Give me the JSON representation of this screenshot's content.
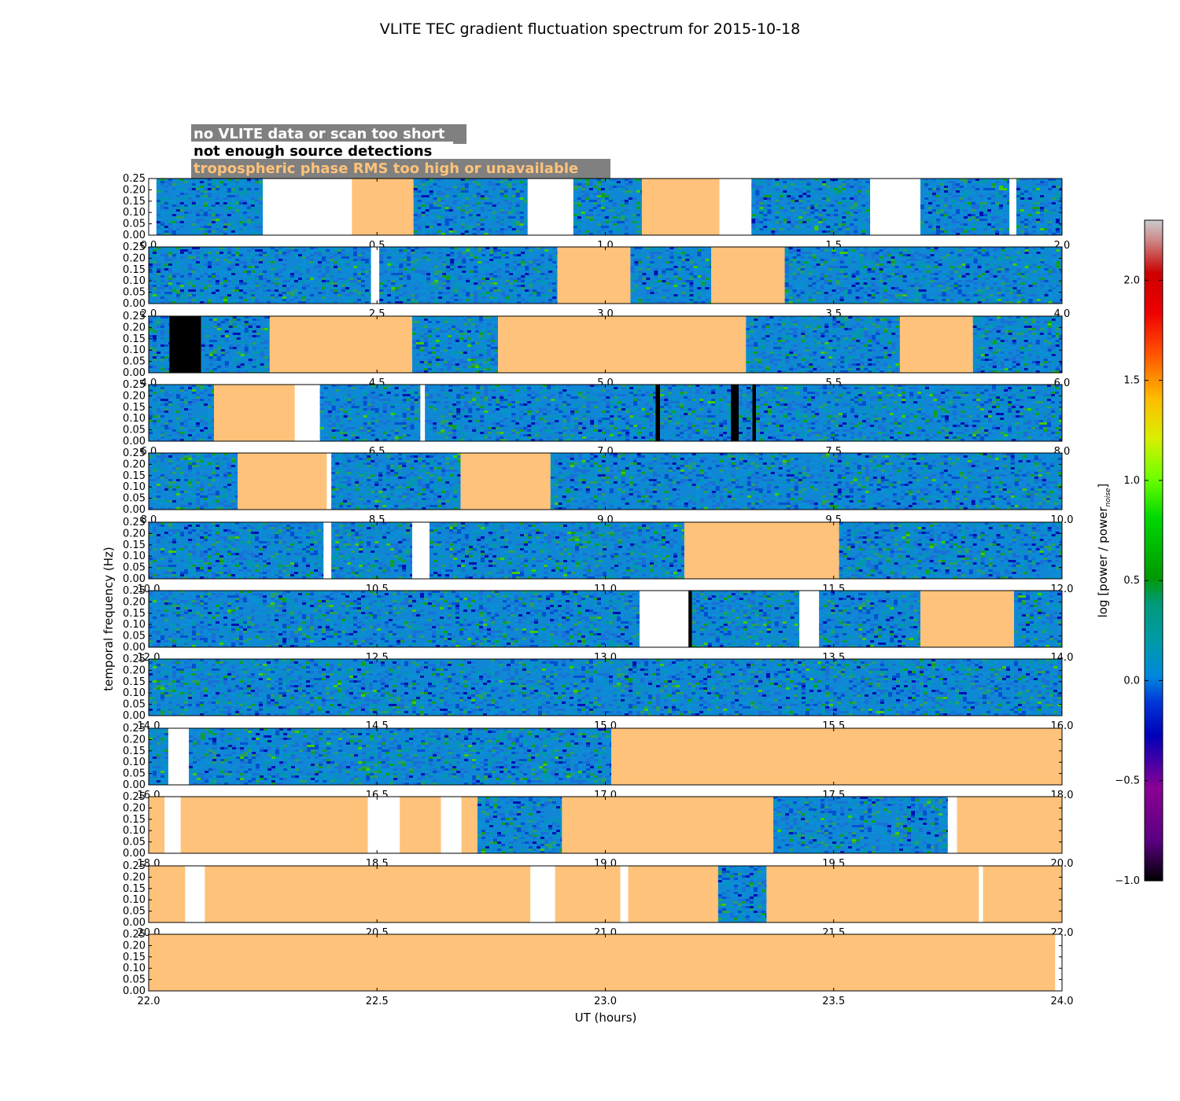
{
  "chart_data": {
    "type": "heatmap",
    "title": "VLITE TEC gradient fluctuation spectrum for 2015-10-18",
    "xlabel": "UT (hours)",
    "ylabel": "temporal frequency (Hz)",
    "ylim": [
      0.0,
      0.25
    ],
    "y_ticks": [
      "0.00",
      "0.05",
      "0.10",
      "0.15",
      "0.20",
      "0.25"
    ],
    "colorbar": {
      "label": "log [power / power",
      "label_sub": "noise",
      "label_end": "]",
      "range": [
        -1.0,
        2.3
      ],
      "ticks": [
        "−1.0",
        "−0.5",
        "0.0",
        "0.5",
        "1.0",
        "1.5",
        "2.0"
      ],
      "tick_values": [
        -1.0,
        -0.5,
        0.0,
        0.5,
        1.0,
        1.5,
        2.0
      ]
    },
    "legend": [
      {
        "label": "no VLITE data or scan too short",
        "color": "#ffffff"
      },
      {
        "label": "not enough source detections",
        "color": "#000000"
      },
      {
        "label": "tropospheric phase RMS too high or unavailable",
        "color": "#ffc27a"
      }
    ],
    "panel_colors": {
      "none": "#ffffff",
      "black": "#000000",
      "trop": "#ffc27a"
    },
    "panels": [
      {
        "xlim": [
          0,
          2
        ],
        "x_ticks": [
          "0.0",
          "0.5",
          "1.0",
          "1.5",
          "2.0"
        ],
        "segments": [
          [
            "none",
            0,
            0.017
          ],
          [
            "data",
            0.017,
            0.25
          ],
          [
            "none",
            0.25,
            0.445
          ],
          [
            "trop",
            0.445,
            0.58
          ],
          [
            "data",
            0.58,
            0.83
          ],
          [
            "none",
            0.83,
            0.93
          ],
          [
            "data",
            0.93,
            1.08
          ],
          [
            "trop",
            1.08,
            1.25
          ],
          [
            "none",
            1.25,
            1.32
          ],
          [
            "data",
            1.32,
            1.58
          ],
          [
            "none",
            1.58,
            1.69
          ],
          [
            "data",
            1.69,
            1.885
          ],
          [
            "none",
            1.885,
            1.9
          ],
          [
            "data",
            1.9,
            2.0
          ]
        ]
      },
      {
        "xlim": [
          2,
          4
        ],
        "x_ticks": [
          "2.0",
          "2.5",
          "3.0",
          "3.5",
          "4.0"
        ],
        "segments": [
          [
            "data",
            2.0,
            2.487
          ],
          [
            "none",
            2.487,
            2.505
          ],
          [
            "data",
            2.505,
            2.895
          ],
          [
            "trop",
            2.895,
            3.055
          ],
          [
            "data",
            3.055,
            3.232
          ],
          [
            "trop",
            3.232,
            3.393
          ],
          [
            "data",
            3.393,
            4.0
          ]
        ]
      },
      {
        "xlim": [
          4,
          6
        ],
        "x_ticks": [
          "4.0",
          "4.5",
          "5.0",
          "5.5",
          "6.0"
        ],
        "segments": [
          [
            "data",
            4.0,
            4.045
          ],
          [
            "black",
            4.045,
            4.115
          ],
          [
            "data",
            4.115,
            4.265
          ],
          [
            "trop",
            4.265,
            4.577
          ],
          [
            "data",
            4.577,
            4.765
          ],
          [
            "trop",
            4.765,
            5.308
          ],
          [
            "data",
            5.308,
            5.645
          ],
          [
            "trop",
            5.645,
            5.805
          ],
          [
            "data",
            5.805,
            6.0
          ]
        ]
      },
      {
        "xlim": [
          6,
          8
        ],
        "x_ticks": [
          "6.0",
          "6.5",
          "7.0",
          "7.5",
          "8.0"
        ],
        "segments": [
          [
            "data",
            6.0,
            6.143
          ],
          [
            "trop",
            6.143,
            6.32
          ],
          [
            "none",
            6.32,
            6.375
          ],
          [
            "data",
            6.375,
            6.595
          ],
          [
            "none",
            6.595,
            6.605
          ],
          [
            "data",
            6.605,
            7.11
          ],
          [
            "black",
            7.11,
            7.12
          ],
          [
            "data",
            7.12,
            7.275
          ],
          [
            "black",
            7.275,
            7.292
          ],
          [
            "data",
            7.292,
            7.322
          ],
          [
            "black",
            7.322,
            7.33
          ],
          [
            "data",
            7.33,
            8.0
          ]
        ]
      },
      {
        "xlim": [
          8,
          10
        ],
        "x_ticks": [
          "8.0",
          "8.5",
          "9.0",
          "9.5",
          "10.0"
        ],
        "segments": [
          [
            "data",
            8.0,
            8.195
          ],
          [
            "trop",
            8.195,
            8.39
          ],
          [
            "none",
            8.39,
            8.4
          ],
          [
            "data",
            8.4,
            8.683
          ],
          [
            "trop",
            8.683,
            8.88
          ],
          [
            "data",
            8.88,
            10.0
          ]
        ]
      },
      {
        "xlim": [
          10,
          12
        ],
        "x_ticks": [
          "10.0",
          "10.5",
          "11.0",
          "11.5",
          "12.0"
        ],
        "segments": [
          [
            "data",
            10.0,
            10.383
          ],
          [
            "none",
            10.383,
            10.4
          ],
          [
            "data",
            10.4,
            10.577
          ],
          [
            "none",
            10.577,
            10.615
          ],
          [
            "data",
            10.615,
            11.173
          ],
          [
            "trop",
            11.173,
            11.512
          ],
          [
            "data",
            11.512,
            12.0
          ]
        ]
      },
      {
        "xlim": [
          12,
          14
        ],
        "x_ticks": [
          "12.0",
          "12.5",
          "13.0",
          "13.5",
          "14.0"
        ],
        "segments": [
          [
            "data",
            12.0,
            13.075
          ],
          [
            "none",
            13.075,
            13.182
          ],
          [
            "black",
            13.182,
            13.19
          ],
          [
            "data",
            13.19,
            13.425
          ],
          [
            "none",
            13.425,
            13.468
          ],
          [
            "data",
            13.468,
            13.69
          ],
          [
            "trop",
            13.69,
            13.895
          ],
          [
            "data",
            13.895,
            14.0
          ]
        ]
      },
      {
        "xlim": [
          14,
          16
        ],
        "x_ticks": [
          "14.0",
          "14.5",
          "15.0",
          "15.5",
          "16.0"
        ],
        "segments": [
          [
            "data",
            14.0,
            16.0
          ]
        ]
      },
      {
        "xlim": [
          16,
          18
        ],
        "x_ticks": [
          "16.0",
          "16.5",
          "17.0",
          "17.5",
          "18.0"
        ],
        "segments": [
          [
            "data",
            16.0,
            16.043
          ],
          [
            "none",
            16.043,
            16.088
          ],
          [
            "data",
            16.088,
            17.013
          ],
          [
            "trop",
            17.013,
            18.0
          ]
        ]
      },
      {
        "xlim": [
          18,
          20
        ],
        "x_ticks": [
          "18.0",
          "18.5",
          "19.0",
          "19.5",
          "20.0"
        ],
        "segments": [
          [
            "trop",
            18.0,
            18.035
          ],
          [
            "none",
            18.035,
            18.07
          ],
          [
            "trop",
            18.07,
            18.48
          ],
          [
            "none",
            18.48,
            18.55
          ],
          [
            "trop",
            18.55,
            18.64
          ],
          [
            "none",
            18.64,
            18.685
          ],
          [
            "trop",
            18.685,
            18.72
          ],
          [
            "data",
            18.72,
            18.905
          ],
          [
            "trop",
            18.905,
            19.368
          ],
          [
            "data",
            19.368,
            19.75
          ],
          [
            "none",
            19.75,
            19.77
          ],
          [
            "trop",
            19.77,
            20.0
          ]
        ]
      },
      {
        "xlim": [
          20,
          22
        ],
        "x_ticks": [
          "20.0",
          "20.5",
          "21.0",
          "21.5",
          "22.0"
        ],
        "segments": [
          [
            "trop",
            20.0,
            20.08
          ],
          [
            "none",
            20.08,
            20.123
          ],
          [
            "trop",
            20.123,
            20.836
          ],
          [
            "none",
            20.836,
            20.89
          ],
          [
            "trop",
            20.89,
            21.033
          ],
          [
            "none",
            21.033,
            21.05
          ],
          [
            "trop",
            21.05,
            21.247
          ],
          [
            "data",
            21.247,
            21.353
          ],
          [
            "trop",
            21.353,
            21.818
          ],
          [
            "none",
            21.818,
            21.827
          ],
          [
            "trop",
            21.827,
            22.0
          ]
        ]
      },
      {
        "xlim": [
          22,
          24
        ],
        "x_ticks": [
          "22.0",
          "22.5",
          "23.0",
          "23.5",
          "24.0"
        ],
        "segments": [
          [
            "trop",
            22.0,
            23.985
          ],
          [
            "none",
            23.985,
            24.0
          ]
        ]
      }
    ]
  }
}
